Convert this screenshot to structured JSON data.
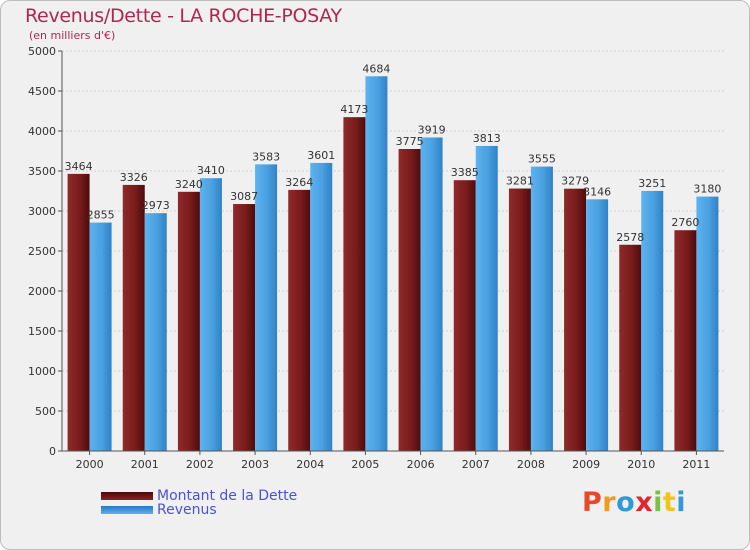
{
  "chart_data": {
    "type": "bar",
    "title": "Revenus/Dette - LA ROCHE-POSAY",
    "subtitle": "(en milliers d'€)",
    "xlabel": "",
    "ylabel": "",
    "ylim": [
      0,
      5000
    ],
    "yticks": [
      0,
      500,
      1000,
      1500,
      2000,
      2500,
      3000,
      3500,
      4000,
      4500,
      5000
    ],
    "categories": [
      "2000",
      "2001",
      "2002",
      "2003",
      "2004",
      "2005",
      "2006",
      "2007",
      "2008",
      "2009",
      "2010",
      "2011"
    ],
    "series": [
      {
        "name": "Montant de la Dette",
        "values": [
          3464,
          3326,
          3240,
          3087,
          3264,
          4173,
          3775,
          3385,
          3281,
          3279,
          2578,
          2760
        ],
        "color": "#7a1a1a"
      },
      {
        "name": "Revenus",
        "values": [
          2855,
          2973,
          3410,
          3583,
          3601,
          4684,
          3919,
          3813,
          3555,
          3146,
          3251,
          3180
        ],
        "color": "#4aa0e0"
      }
    ],
    "legend_position": "bottom-left",
    "grid": true
  },
  "legend": {
    "items": [
      {
        "label": "Montant de la Dette",
        "color": "#7a1a1a"
      },
      {
        "label": "Revenus",
        "color": "#4aa0e0"
      }
    ]
  },
  "logo": {
    "text": "Proxiti",
    "colors": [
      "#e8472a",
      "#f29a1a",
      "#2f9ad6",
      "#e2262c",
      "#7cc043",
      "#f2c41a",
      "#2f9ad6"
    ]
  }
}
